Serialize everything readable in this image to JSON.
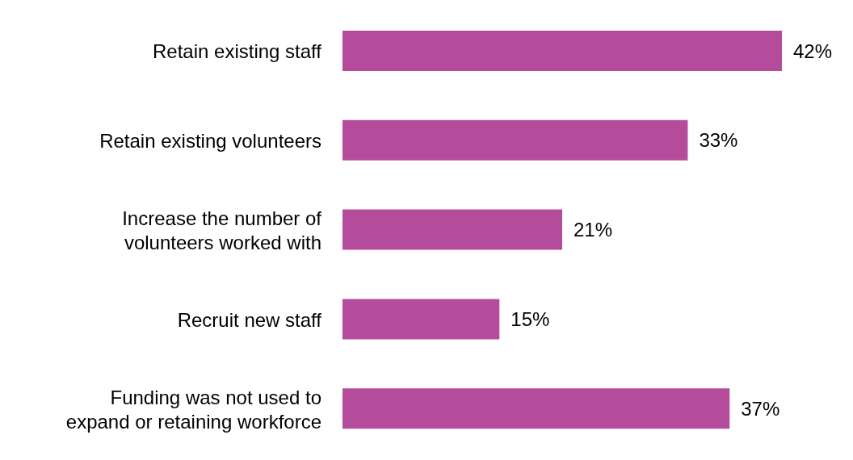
{
  "chart_data": {
    "type": "bar",
    "orientation": "horizontal",
    "categories": [
      "Retain existing staff",
      "Retain existing volunteers",
      "Increase the number of volunteers worked with",
      "Recruit new staff",
      "Funding was not used to expand or retaining workforce"
    ],
    "values": [
      42,
      33,
      21,
      15,
      37
    ],
    "value_labels": [
      "42%",
      "33%",
      "21%",
      "15%",
      "37%"
    ],
    "color": "#b44c9b"
  }
}
